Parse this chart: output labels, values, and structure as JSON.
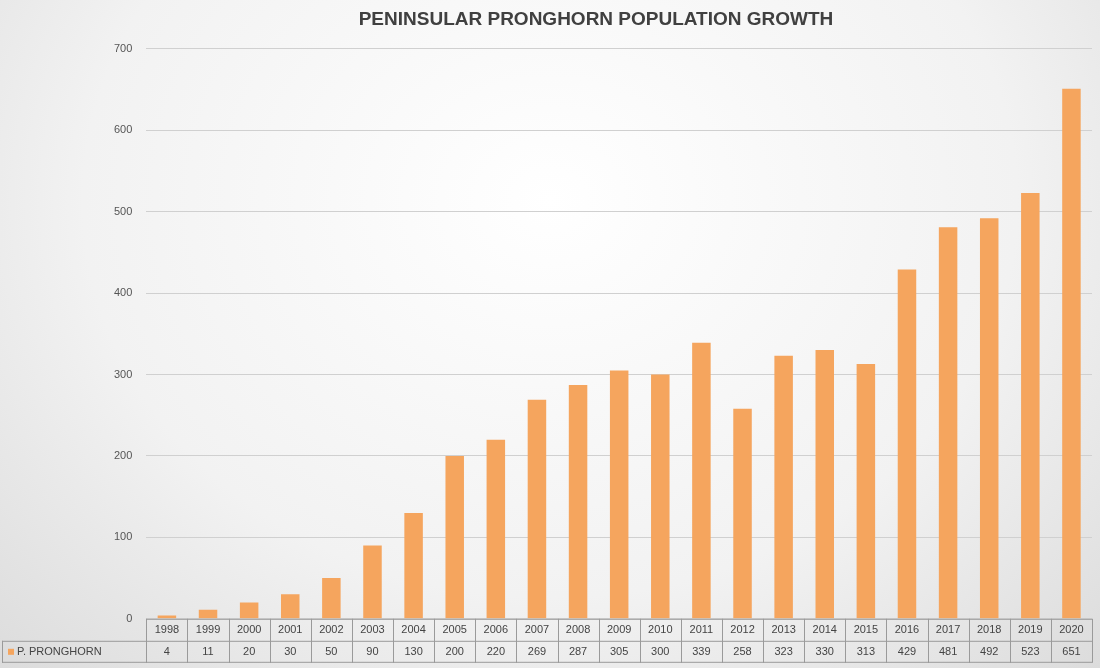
{
  "chart_data": {
    "type": "bar",
    "title": "PENINSULAR PRONGHORN POPULATION GROWTH",
    "categories": [
      "1998",
      "1999",
      "2000",
      "2001",
      "2002",
      "2003",
      "2004",
      "2005",
      "2006",
      "2007",
      "2008",
      "2009",
      "2010",
      "2011",
      "2012",
      "2013",
      "2014",
      "2015",
      "2016",
      "2017",
      "2018",
      "2019",
      "2020"
    ],
    "series": [
      {
        "name": "P. PRONGHORN",
        "color": "#f5a55e",
        "values": [
          4,
          11,
          20,
          30,
          50,
          90,
          130,
          200,
          220,
          269,
          287,
          305,
          300,
          339,
          258,
          323,
          330,
          313,
          429,
          481,
          492,
          523,
          651
        ]
      }
    ],
    "ylim": [
      0,
      700
    ],
    "yticks": [
      0,
      100,
      200,
      300,
      400,
      500,
      600,
      700
    ],
    "grid": "y",
    "legend": "bottom",
    "data_labels": true
  }
}
